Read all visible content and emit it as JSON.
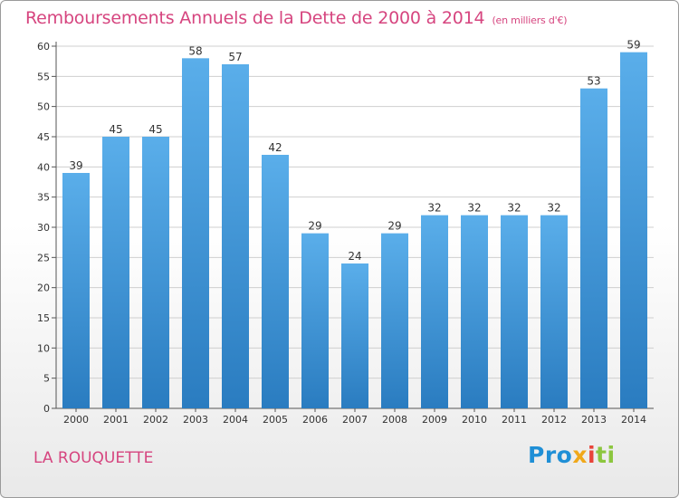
{
  "title": "Remboursements Annuels de la Dette de 2000 à 2014",
  "subtitle": "(en milliers d'€)",
  "city": "LA ROUQUETTE",
  "logo": "Proxiti",
  "colors": {
    "title": "#d6457f",
    "bar_light": "#5aaeea",
    "bar_dark": "#2a7cc0",
    "grid": "#cfcfcf"
  },
  "chart_data": {
    "type": "bar",
    "categories": [
      "2000",
      "2001",
      "2002",
      "2003",
      "2004",
      "2005",
      "2006",
      "2007",
      "2008",
      "2009",
      "2010",
      "2011",
      "2012",
      "2013",
      "2014"
    ],
    "values": [
      39,
      45,
      45,
      58,
      57,
      42,
      29,
      24,
      29,
      32,
      32,
      32,
      32,
      53,
      59
    ],
    "title": "Remboursements Annuels de la Dette de 2000 à 2014",
    "subtitle": "(en milliers d'€)",
    "ylim": [
      0,
      60
    ],
    "yticks": [
      0,
      5,
      10,
      15,
      20,
      25,
      30,
      35,
      40,
      45,
      50,
      55,
      60
    ],
    "grid": true
  }
}
